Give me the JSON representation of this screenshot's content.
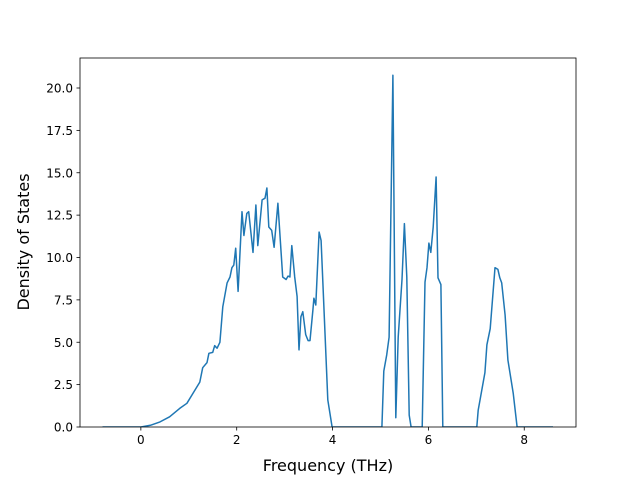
{
  "chart_data": {
    "type": "line",
    "title": "",
    "xlabel": "Frequency (THz)",
    "ylabel": "Density of States",
    "xlim": [
      -1.27,
      9.08
    ],
    "ylim": [
      0,
      21.77
    ],
    "xticks": [
      0,
      2,
      4,
      6,
      8
    ],
    "xtick_labels": [
      "0",
      "2",
      "4",
      "6",
      "8"
    ],
    "yticks": [
      0,
      2.5,
      5,
      7.5,
      10,
      12.5,
      15,
      17.5,
      20
    ],
    "ytick_labels": [
      "0.0",
      "2.5",
      "5.0",
      "7.5",
      "10.0",
      "12.5",
      "15.0",
      "17.5",
      "20.0"
    ],
    "grid": false,
    "series": [
      {
        "name": "DOS",
        "color": "#1f77b4",
        "x": [
          -0.8,
          0.0,
          0.2,
          0.4,
          0.6,
          0.81,
          0.96,
          1.09,
          1.23,
          1.29,
          1.38,
          1.42,
          1.5,
          1.54,
          1.59,
          1.65,
          1.71,
          1.8,
          1.86,
          1.9,
          1.94,
          1.98,
          2.03,
          2.11,
          2.15,
          2.21,
          2.25,
          2.34,
          2.4,
          2.44,
          2.53,
          2.59,
          2.63,
          2.67,
          2.73,
          2.78,
          2.86,
          2.96,
          3.03,
          3.07,
          3.11,
          3.15,
          3.21,
          3.26,
          3.3,
          3.34,
          3.38,
          3.44,
          3.49,
          3.53,
          3.59,
          3.61,
          3.65,
          3.72,
          3.76,
          3.9,
          3.99,
          5.03,
          5.07,
          5.13,
          5.18,
          5.26,
          5.32,
          5.37,
          5.45,
          5.5,
          5.55,
          5.6,
          5.64,
          5.87,
          5.93,
          5.97,
          6.01,
          6.05,
          6.1,
          6.16,
          6.2,
          6.26,
          6.3,
          7.01,
          7.04,
          7.18,
          7.22,
          7.29,
          7.39,
          7.45,
          7.49,
          7.53,
          7.6,
          7.66,
          7.77,
          7.85,
          8.6
        ],
        "y": [
          0,
          0,
          0.1,
          0.3,
          0.6,
          1.1,
          1.4,
          2.0,
          2.65,
          3.5,
          3.8,
          4.35,
          4.4,
          4.8,
          4.65,
          5.0,
          7.1,
          8.5,
          8.85,
          9.4,
          9.55,
          10.55,
          8.0,
          12.7,
          11.3,
          12.6,
          12.7,
          10.3,
          13.1,
          10.7,
          13.4,
          13.5,
          14.1,
          11.8,
          11.6,
          10.6,
          13.2,
          8.85,
          8.7,
          8.9,
          8.85,
          10.7,
          8.85,
          7.7,
          4.55,
          6.5,
          6.8,
          5.45,
          5.1,
          5.1,
          6.9,
          7.6,
          7.2,
          11.5,
          11.0,
          1.6,
          0,
          0,
          3.3,
          4.25,
          5.3,
          20.75,
          0.55,
          5.3,
          8.7,
          12.0,
          8.85,
          0.7,
          0,
          0,
          8.55,
          9.4,
          10.85,
          10.3,
          11.8,
          14.75,
          8.8,
          8.4,
          0,
          0,
          1.0,
          3.2,
          4.85,
          5.8,
          9.4,
          9.3,
          8.8,
          8.5,
          6.6,
          3.95,
          2.0,
          0,
          0
        ]
      }
    ]
  }
}
